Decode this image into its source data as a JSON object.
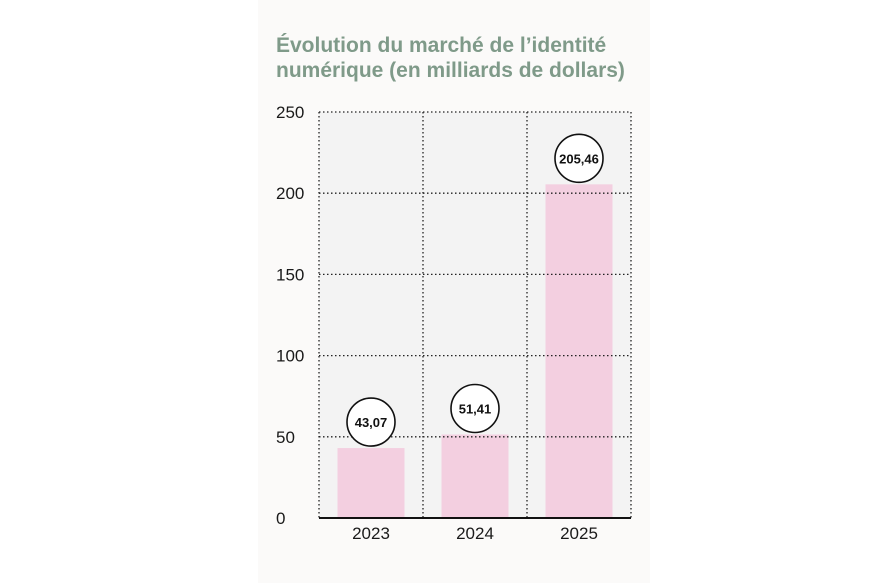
{
  "chart_data": {
    "type": "bar",
    "title": "Évolution du marché de l’identité numérique (en milliards de dollars)",
    "categories": [
      "2023",
      "2024",
      "2025"
    ],
    "values": [
      43.07,
      51.41,
      205.46
    ],
    "value_labels": [
      "43,07",
      "51,41",
      "205,46"
    ],
    "ylim": [
      0,
      250
    ],
    "yticks": [
      0,
      50,
      100,
      150,
      200,
      250
    ],
    "xlabel": "",
    "ylabel": "",
    "grid": true,
    "bar_color": "#f3cfe0",
    "plot_background": "#f3f3f3",
    "title_color": "#7f9a89"
  }
}
